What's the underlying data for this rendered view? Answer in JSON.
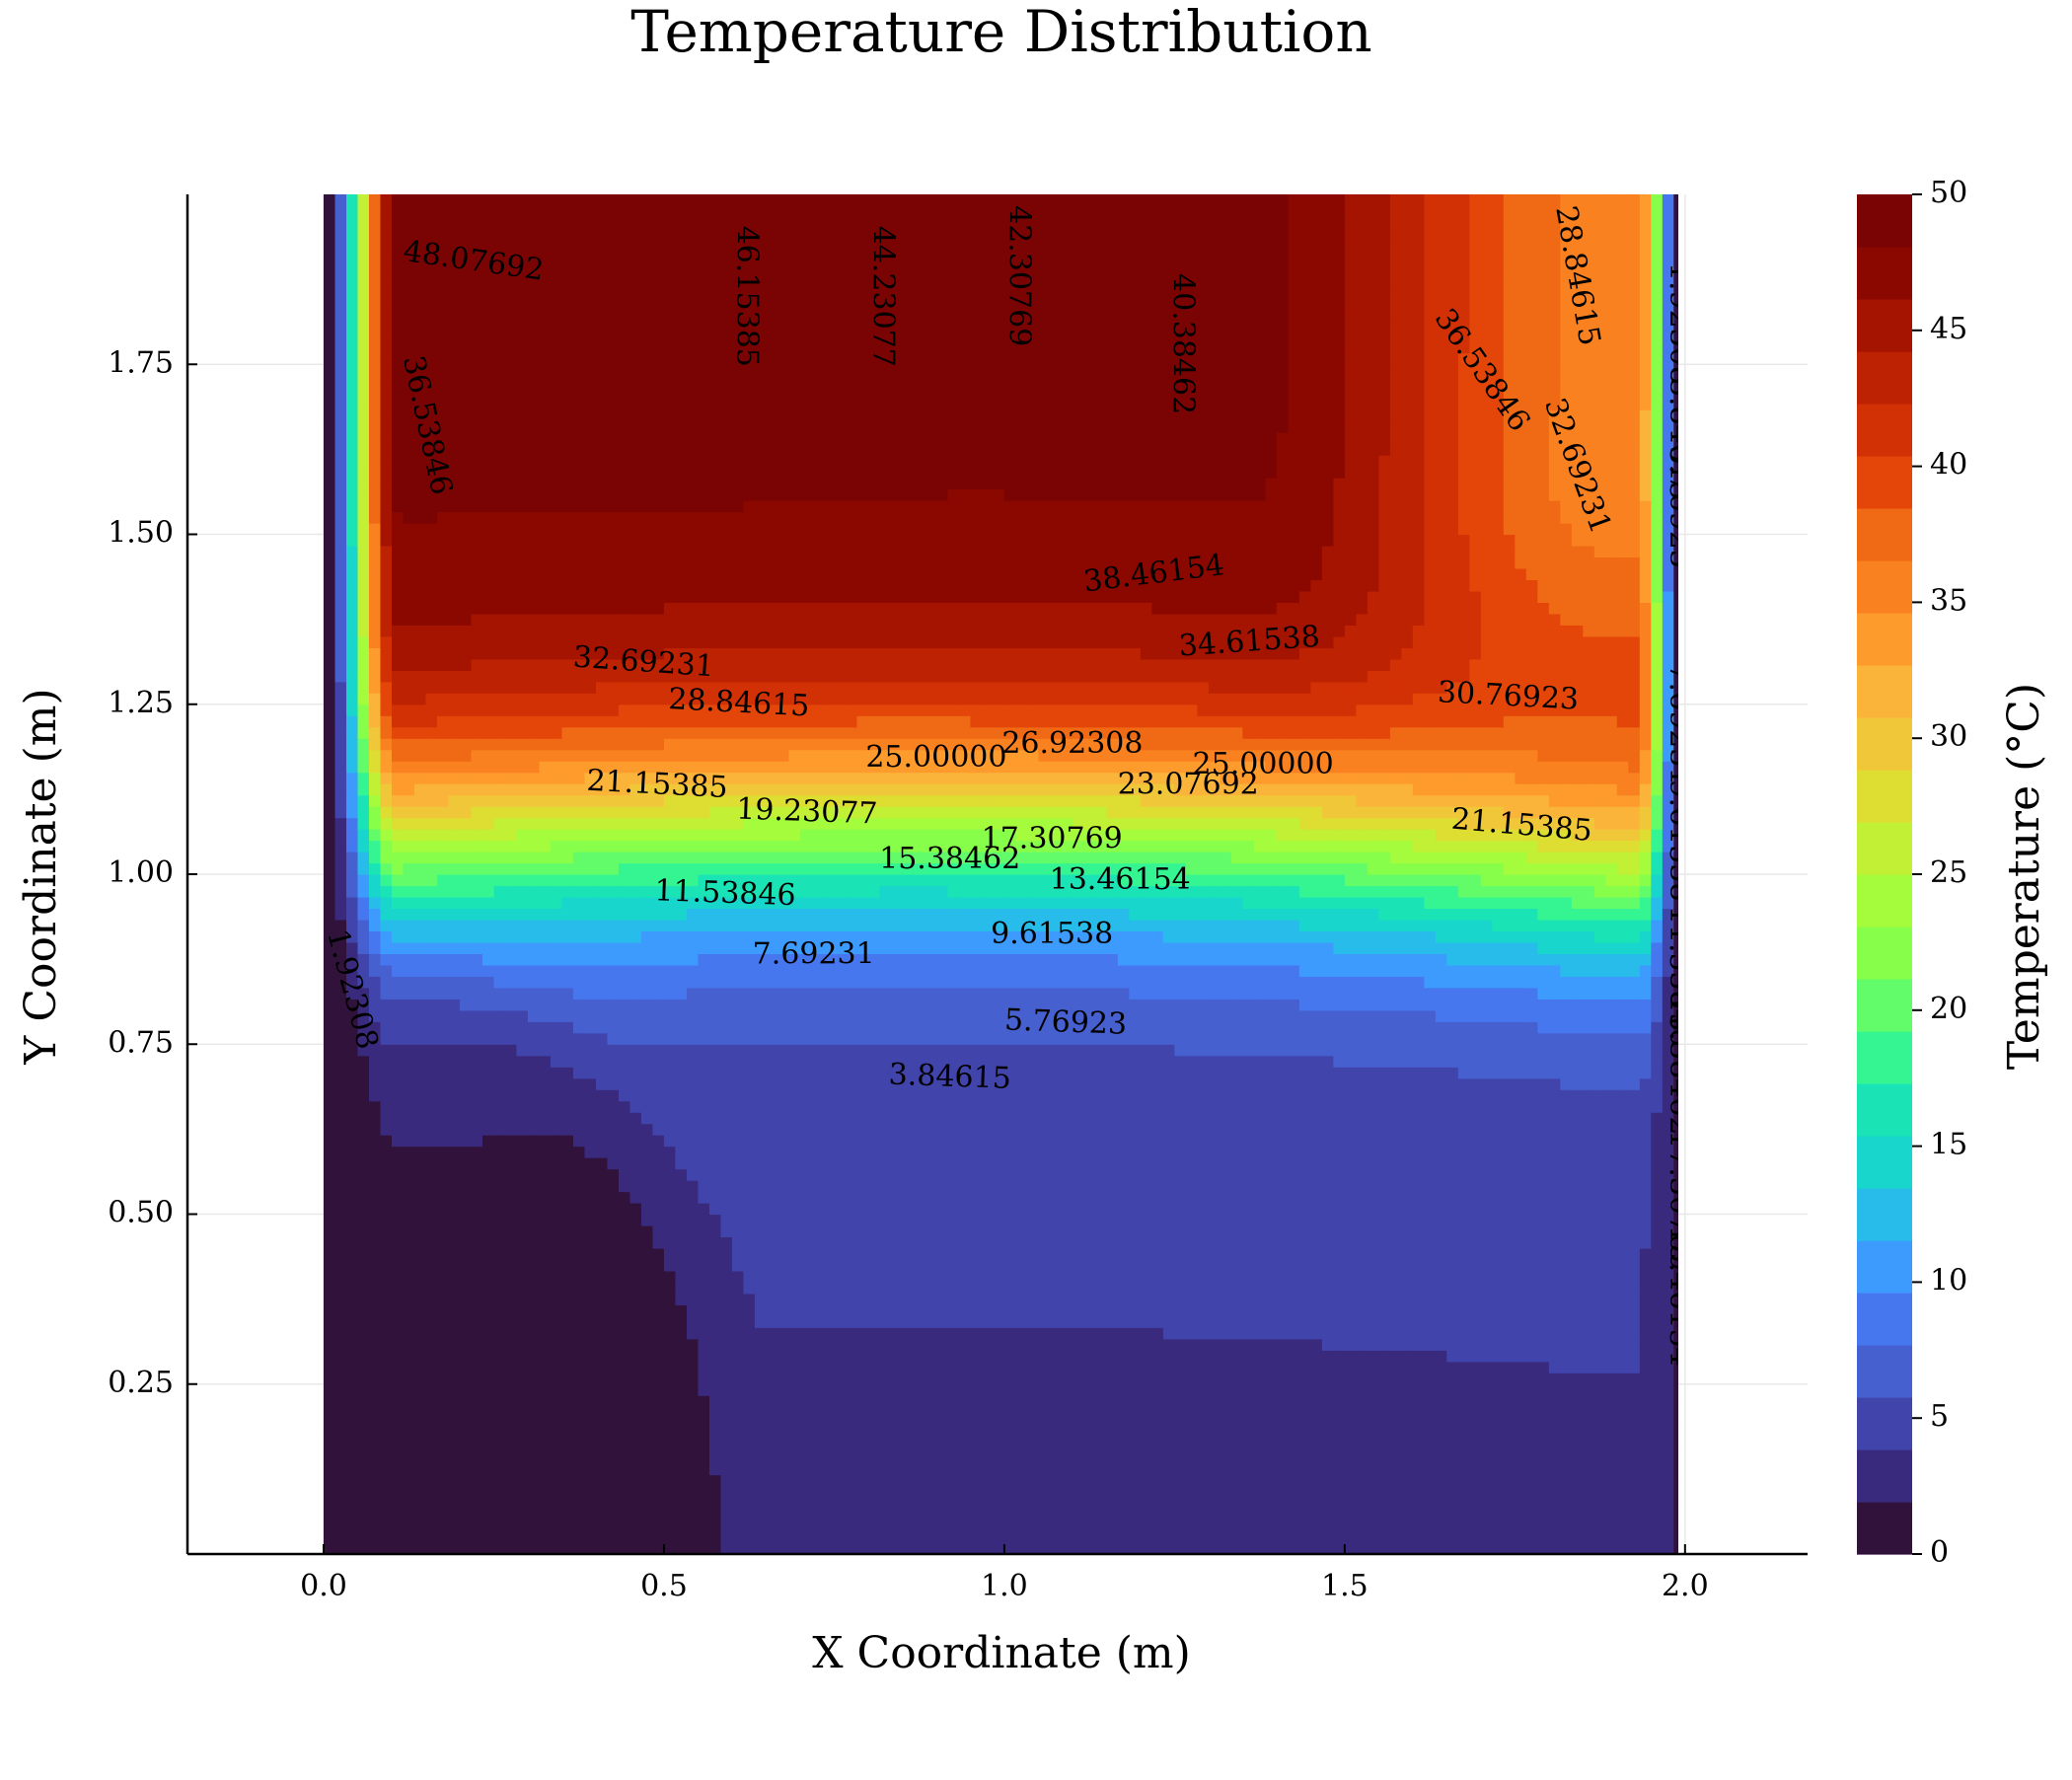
{
  "chart_data": {
    "type": "heatmap",
    "subtype": "filled-contour",
    "title": "Temperature Distribution",
    "xlabel": "X Coordinate (m)",
    "ylabel": "Y Coordinate (m)",
    "colorbar_label": "Temperature (°C)",
    "xlim": [
      -0.2,
      2.18
    ],
    "ylim": [
      0.0,
      2.0
    ],
    "zlim": [
      0,
      50
    ],
    "x_ticks": [
      0.0,
      0.5,
      1.0,
      1.5,
      2.0
    ],
    "x_tick_labels": [
      "0.0",
      "0.5",
      "1.0",
      "1.5",
      "2.0"
    ],
    "y_ticks": [
      0.25,
      0.5,
      0.75,
      1.0,
      1.25,
      1.5,
      1.75
    ],
    "y_tick_labels": [
      "0.25",
      "0.50",
      "0.75",
      "1.00",
      "1.25",
      "1.50",
      "1.75"
    ],
    "colorbar_ticks": [
      0,
      5,
      10,
      15,
      20,
      25,
      30,
      35,
      40,
      45,
      50
    ],
    "colorbar_tick_labels": [
      "0",
      "5",
      "10",
      "15",
      "20",
      "25",
      "30",
      "35",
      "40",
      "45",
      "50"
    ],
    "grid": true,
    "domain": {
      "x": [
        0,
        2
      ],
      "y": [
        0,
        2
      ]
    },
    "levels": [
      0,
      1.92308,
      3.84615,
      5.76923,
      7.69231,
      9.61538,
      11.53846,
      13.46154,
      15.38462,
      17.30769,
      19.23077,
      21.15385,
      23.07692,
      25.0,
      26.92308,
      28.84615,
      30.76923,
      32.69231,
      34.61538,
      36.53846,
      38.46154,
      40.38462,
      42.30769,
      44.23077,
      46.15385,
      48.07692,
      50.0
    ],
    "colormap": [
      "#30123b",
      "#3a2a7e",
      "#4145ab",
      "#4660cf",
      "#4777ef",
      "#3e9bfe",
      "#28bceb",
      "#18d6cb",
      "#1ae4b6",
      "#35f592",
      "#62fc6b",
      "#86fe4a",
      "#a4fc3c",
      "#c2f034",
      "#dedd32",
      "#f1c73a",
      "#fbb43a",
      "#fe9b2d",
      "#f98120",
      "#f06914",
      "#e4460a",
      "#d23105",
      "#bd2202",
      "#a51301",
      "#8b0801",
      "#7a0403"
    ],
    "contour_labels": [
      {
        "text": "48.07692",
        "x": 0.22,
        "y": 1.9,
        "angle": 8
      },
      {
        "text": "46.15385",
        "x": 0.62,
        "y": 1.85,
        "angle": 90
      },
      {
        "text": "44.23077",
        "x": 0.82,
        "y": 1.85,
        "angle": 90
      },
      {
        "text": "42.30769",
        "x": 1.02,
        "y": 1.88,
        "angle": 90
      },
      {
        "text": "40.38462",
        "x": 1.26,
        "y": 1.78,
        "angle": 90
      },
      {
        "text": "36.53846",
        "x": 0.15,
        "y": 1.66,
        "angle": 78
      },
      {
        "text": "36.53846",
        "x": 1.7,
        "y": 1.74,
        "angle": 55
      },
      {
        "text": "28.84615",
        "x": 1.84,
        "y": 1.88,
        "angle": 80
      },
      {
        "text": "32.69231",
        "x": 1.84,
        "y": 1.6,
        "angle": 70
      },
      {
        "text": "1.92308",
        "x": 1.99,
        "y": 1.81,
        "angle": 90
      },
      {
        "text": "3.84615",
        "x": 1.99,
        "y": 1.64,
        "angle": 90
      },
      {
        "text": "5.76923",
        "x": 1.99,
        "y": 1.54,
        "angle": 90
      },
      {
        "text": "38.46154",
        "x": 1.22,
        "y": 1.44,
        "angle": -7
      },
      {
        "text": "34.61538",
        "x": 1.36,
        "y": 1.34,
        "angle": -4
      },
      {
        "text": "32.69231",
        "x": 0.47,
        "y": 1.31,
        "angle": 4
      },
      {
        "text": "30.76923",
        "x": 1.74,
        "y": 1.26,
        "angle": 3
      },
      {
        "text": "28.84615",
        "x": 0.61,
        "y": 1.25,
        "angle": 3
      },
      {
        "text": "26.92308",
        "x": 1.1,
        "y": 1.19,
        "angle": 0
      },
      {
        "text": "25.00000",
        "x": 0.9,
        "y": 1.17,
        "angle": 0
      },
      {
        "text": "25.00000",
        "x": 1.38,
        "y": 1.16,
        "angle": 0
      },
      {
        "text": "23.07692",
        "x": 1.27,
        "y": 1.13,
        "angle": 0
      },
      {
        "text": "21.15385",
        "x": 0.49,
        "y": 1.13,
        "angle": 3
      },
      {
        "text": "21.15385",
        "x": 1.76,
        "y": 1.07,
        "angle": 5
      },
      {
        "text": "19.23077",
        "x": 0.71,
        "y": 1.09,
        "angle": 2
      },
      {
        "text": "17.30769",
        "x": 1.07,
        "y": 1.05,
        "angle": 0
      },
      {
        "text": "15.38462",
        "x": 0.92,
        "y": 1.02,
        "angle": 0
      },
      {
        "text": "13.46154",
        "x": 1.17,
        "y": 0.99,
        "angle": 0
      },
      {
        "text": "11.53846",
        "x": 0.59,
        "y": 0.97,
        "angle": 2
      },
      {
        "text": "9.61538",
        "x": 1.07,
        "y": 0.91,
        "angle": 0
      },
      {
        "text": "7.69231",
        "x": 0.72,
        "y": 0.88,
        "angle": 0
      },
      {
        "text": "5.76923",
        "x": 1.09,
        "y": 0.78,
        "angle": 2
      },
      {
        "text": "3.84615",
        "x": 0.92,
        "y": 0.7,
        "angle": 2
      },
      {
        "text": "1.92308",
        "x": 0.04,
        "y": 0.83,
        "angle": 75
      },
      {
        "text": "7.69231",
        "x": 1.99,
        "y": 1.22,
        "angle": 90
      },
      {
        "text": "9.61538",
        "x": 1.99,
        "y": 1.05,
        "angle": 90
      },
      {
        "text": "11.53846",
        "x": 1.99,
        "y": 0.85,
        "angle": 90
      },
      {
        "text": "13.46154",
        "x": 1.99,
        "y": 0.38,
        "angle": 90
      },
      {
        "text": "15.38462",
        "x": 1.99,
        "y": 0.72,
        "angle": 90
      },
      {
        "text": "17.30769",
        "x": 1.99,
        "y": 0.52,
        "angle": 90
      }
    ]
  }
}
